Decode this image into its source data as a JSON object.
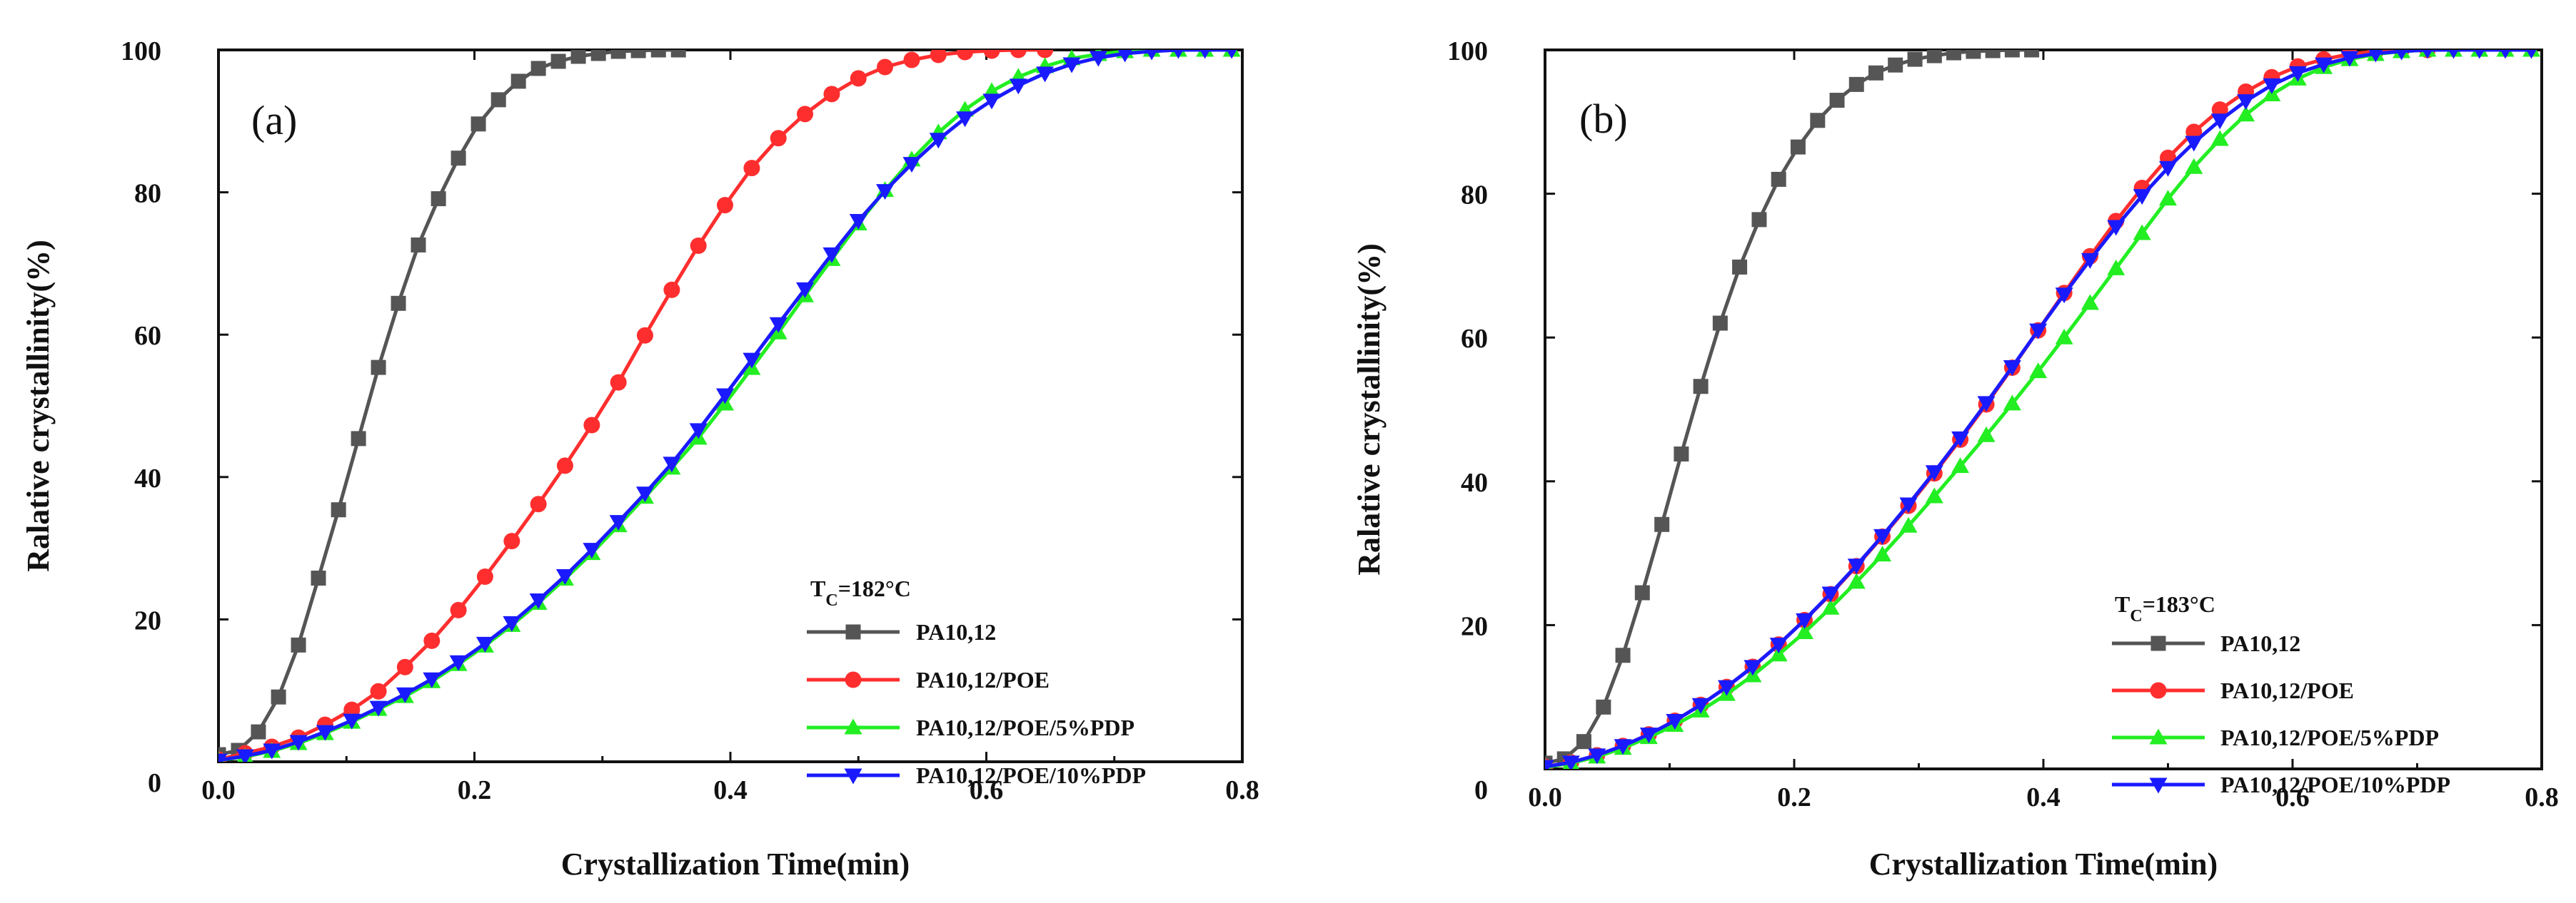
{
  "colors": {
    "PA10,12": "#555555",
    "PA10,12/POE": "#ff2e2e",
    "PA10,12/POE/5%PDP": "#22ee22",
    "PA10,12/POE/10%PDP": "#1a1aff",
    "axis": "#111111"
  },
  "chart_data": [
    {
      "type": "line",
      "panel_label": "(a)",
      "legend_title_main": "T",
      "legend_title_sub": "C",
      "legend_title_rest": "=182°C",
      "legend_position": "bottom-right",
      "xlabel": "Crystallization Time(min)",
      "ylabel": "Ralative crystallinity(%)",
      "xlim": [
        0,
        0.8
      ],
      "ylim": [
        0,
        100
      ],
      "xticks": [
        0.0,
        0.2,
        0.4,
        0.6,
        0.8
      ],
      "xtick_labels": [
        "0.0",
        "0.2",
        "0.4",
        "0.6",
        "0.8"
      ],
      "yticks": [
        0,
        20,
        40,
        60,
        80,
        100
      ],
      "ytick_labels": [
        "0",
        "20",
        "40",
        "60",
        "80",
        "100"
      ],
      "grid": false,
      "series": [
        {
          "name": "PA10,12",
          "marker": "square",
          "color_key": "PA10,12",
          "x": [
            0.0,
            0.0156,
            0.0312,
            0.0469,
            0.0625,
            0.0781,
            0.0938,
            0.1094,
            0.125,
            0.1406,
            0.1562,
            0.1719,
            0.1875,
            0.2031,
            0.2188,
            0.2344,
            0.25,
            0.2656,
            0.2812,
            0.2969,
            0.3125,
            0.3281,
            0.3438,
            0.3594
          ],
          "y": [
            1.0,
            1.6,
            4.2,
            9.1,
            16.4,
            25.8,
            35.4,
            45.4,
            55.4,
            64.4,
            72.6,
            79.1,
            84.8,
            89.6,
            93.0,
            95.6,
            97.4,
            98.4,
            99.1,
            99.5,
            99.8,
            99.9,
            100.0,
            100.0
          ]
        },
        {
          "name": "PA10,12/POE",
          "marker": "circle",
          "color_key": "PA10,12/POE",
          "x": [
            0.0,
            0.0208,
            0.0417,
            0.0625,
            0.0833,
            0.1042,
            0.125,
            0.1458,
            0.1667,
            0.1875,
            0.2083,
            0.2292,
            0.25,
            0.2708,
            0.2917,
            0.3125,
            0.3333,
            0.3542,
            0.375,
            0.3958,
            0.4167,
            0.4375,
            0.4583,
            0.4792,
            0.5,
            0.5208,
            0.5417,
            0.5625,
            0.5833,
            0.6042,
            0.625,
            0.6458
          ],
          "y": [
            0.3,
            1.2,
            2.1,
            3.4,
            5.2,
            7.3,
            9.9,
            13.3,
            17.0,
            21.3,
            26.0,
            31.0,
            36.2,
            41.6,
            47.3,
            53.3,
            59.9,
            66.3,
            72.5,
            78.2,
            83.4,
            87.6,
            91.0,
            93.8,
            96.0,
            97.6,
            98.6,
            99.3,
            99.7,
            99.9,
            100.0,
            100.0
          ]
        },
        {
          "name": "PA10,12/POE/5%PDP",
          "marker": "triangle-up",
          "color_key": "PA10,12/POE/5%PDP",
          "x": [
            0.0,
            0.0208,
            0.0417,
            0.0625,
            0.0833,
            0.1042,
            0.125,
            0.1458,
            0.1667,
            0.1875,
            0.2083,
            0.2292,
            0.25,
            0.2708,
            0.2917,
            0.3125,
            0.3333,
            0.3542,
            0.375,
            0.3958,
            0.4167,
            0.4375,
            0.4583,
            0.4792,
            0.5,
            0.5208,
            0.5417,
            0.5625,
            0.5833,
            0.6042,
            0.625,
            0.6458,
            0.6667,
            0.6875,
            0.7083,
            0.7292,
            0.75,
            0.7708,
            0.7917
          ],
          "y": [
            0.2,
            0.7,
            1.5,
            2.6,
            4.0,
            5.6,
            7.4,
            9.2,
            11.3,
            13.7,
            16.3,
            19.2,
            22.3,
            25.7,
            29.3,
            33.2,
            37.2,
            41.3,
            45.5,
            50.3,
            55.3,
            60.3,
            65.5,
            70.6,
            75.6,
            80.3,
            84.6,
            88.4,
            91.6,
            94.2,
            96.2,
            97.7,
            98.8,
            99.4,
            99.8,
            100.0,
            100.0,
            100.0,
            100.0
          ]
        },
        {
          "name": "PA10,12/POE/10%PDP",
          "marker": "triangle-down",
          "color_key": "PA10,12/POE/10%PDP",
          "x": [
            0.0,
            0.0208,
            0.0417,
            0.0625,
            0.0833,
            0.1042,
            0.125,
            0.1458,
            0.1667,
            0.1875,
            0.2083,
            0.2292,
            0.25,
            0.2708,
            0.2917,
            0.3125,
            0.3333,
            0.3542,
            0.375,
            0.3958,
            0.4167,
            0.4375,
            0.4583,
            0.4792,
            0.5,
            0.5208,
            0.5417,
            0.5625,
            0.5833,
            0.6042,
            0.625,
            0.6458,
            0.6667,
            0.6875,
            0.7083,
            0.7292,
            0.75,
            0.7708,
            0.7917
          ],
          "y": [
            0.2,
            0.8,
            1.6,
            2.8,
            4.2,
            5.8,
            7.6,
            9.5,
            11.6,
            14.0,
            16.6,
            19.5,
            22.7,
            26.1,
            29.8,
            33.7,
            37.7,
            41.9,
            46.6,
            51.5,
            56.5,
            61.5,
            66.4,
            71.3,
            76.0,
            80.2,
            84.0,
            87.4,
            90.4,
            92.9,
            95.0,
            96.7,
            98.0,
            98.9,
            99.5,
            99.8,
            100.0,
            100.0,
            100.0
          ]
        }
      ]
    },
    {
      "type": "line",
      "panel_label": "(b)",
      "legend_title_main": "T",
      "legend_title_sub": "C",
      "legend_title_rest": "=183°C",
      "legend_position": "bottom-right",
      "xlabel": "Crystallization Time(min)",
      "ylabel": "Ralative crystallinity(%)",
      "xlim": [
        0,
        0.8
      ],
      "ylim": [
        0,
        100
      ],
      "xticks": [
        0.0,
        0.2,
        0.4,
        0.6,
        0.8
      ],
      "xtick_labels": [
        "0.0",
        "0.2",
        "0.4",
        "0.6",
        "0.8"
      ],
      "yticks": [
        0,
        20,
        40,
        60,
        80,
        100
      ],
      "ytick_labels": [
        "0",
        "20",
        "40",
        "60",
        "80",
        "100"
      ],
      "grid": false,
      "series": [
        {
          "name": "PA10,12",
          "marker": "square",
          "color_key": "PA10,12",
          "x": [
            0.0,
            0.0156,
            0.0312,
            0.0469,
            0.0625,
            0.0781,
            0.0938,
            0.1094,
            0.125,
            0.1406,
            0.1562,
            0.1719,
            0.1875,
            0.2031,
            0.2188,
            0.2344,
            0.25,
            0.2656,
            0.2812,
            0.2969,
            0.3125,
            0.3281,
            0.3438,
            0.3594,
            0.375,
            0.3906
          ],
          "y": [
            0.8,
            1.4,
            3.8,
            8.6,
            15.8,
            24.5,
            34.0,
            43.8,
            53.2,
            62.0,
            69.8,
            76.4,
            82.0,
            86.5,
            90.2,
            93.0,
            95.2,
            96.8,
            97.9,
            98.7,
            99.2,
            99.6,
            99.8,
            99.9,
            100.0,
            100.0
          ]
        },
        {
          "name": "PA10,12/POE",
          "marker": "circle",
          "color_key": "PA10,12/POE",
          "x": [
            0.0,
            0.0208,
            0.0417,
            0.0625,
            0.0833,
            0.1042,
            0.125,
            0.1458,
            0.1667,
            0.1875,
            0.2083,
            0.2292,
            0.25,
            0.2708,
            0.2917,
            0.3125,
            0.3333,
            0.3542,
            0.375,
            0.3958,
            0.4167,
            0.4375,
            0.4583,
            0.4792,
            0.5,
            0.5208,
            0.5417,
            0.5625,
            0.5833,
            0.6042,
            0.625,
            0.6458,
            0.6667,
            0.6875,
            0.7083
          ],
          "y": [
            0.3,
            0.9,
            1.9,
            3.2,
            4.8,
            6.7,
            8.9,
            11.4,
            14.2,
            17.3,
            20.7,
            24.3,
            28.2,
            32.3,
            36.6,
            41.1,
            45.8,
            50.7,
            55.8,
            61.0,
            66.2,
            71.3,
            76.2,
            80.8,
            85.0,
            88.6,
            91.7,
            94.2,
            96.2,
            97.7,
            98.7,
            99.4,
            99.8,
            100.0,
            100.0
          ]
        },
        {
          "name": "PA10,12/POE/5%PDP",
          "marker": "triangle-up",
          "color_key": "PA10,12/POE/5%PDP",
          "x": [
            0.0,
            0.0208,
            0.0417,
            0.0625,
            0.0833,
            0.1042,
            0.125,
            0.1458,
            0.1667,
            0.1875,
            0.2083,
            0.2292,
            0.25,
            0.2708,
            0.2917,
            0.3125,
            0.3333,
            0.3542,
            0.375,
            0.3958,
            0.4167,
            0.4375,
            0.4583,
            0.4792,
            0.5,
            0.5208,
            0.5417,
            0.5625,
            0.5833,
            0.6042,
            0.625,
            0.6458,
            0.6667,
            0.6875,
            0.7083,
            0.7292,
            0.75,
            0.7708,
            0.7917
          ],
          "y": [
            0.2,
            0.8,
            1.7,
            2.9,
            4.4,
            6.1,
            8.1,
            10.4,
            13.0,
            15.9,
            19.0,
            22.4,
            26.0,
            29.8,
            33.8,
            37.9,
            42.1,
            46.4,
            50.8,
            55.3,
            60.0,
            64.8,
            69.6,
            74.5,
            79.3,
            83.7,
            87.6,
            91.0,
            93.8,
            96.0,
            97.6,
            98.7,
            99.4,
            99.8,
            100.0,
            100.0,
            100.0,
            100.0,
            100.0
          ]
        },
        {
          "name": "PA10,12/POE/10%PDP",
          "marker": "triangle-down",
          "color_key": "PA10,12/POE/10%PDP",
          "x": [
            0.0,
            0.0208,
            0.0417,
            0.0625,
            0.0833,
            0.1042,
            0.125,
            0.1458,
            0.1667,
            0.1875,
            0.2083,
            0.2292,
            0.25,
            0.2708,
            0.2917,
            0.3125,
            0.3333,
            0.3542,
            0.375,
            0.3958,
            0.4167,
            0.4375,
            0.4583,
            0.4792,
            0.5,
            0.5208,
            0.5417,
            0.5625,
            0.5833,
            0.6042,
            0.625,
            0.6458,
            0.6667,
            0.6875,
            0.7083,
            0.7292,
            0.75,
            0.7708,
            0.7917
          ],
          "y": [
            0.3,
            0.9,
            1.9,
            3.2,
            4.8,
            6.7,
            8.9,
            11.4,
            14.2,
            17.3,
            20.7,
            24.4,
            28.3,
            32.4,
            36.8,
            41.3,
            46.0,
            50.9,
            55.9,
            61.0,
            66.0,
            70.8,
            75.4,
            79.7,
            83.6,
            87.1,
            90.2,
            92.9,
            95.1,
            96.8,
            98.0,
            98.9,
            99.5,
            99.8,
            100.0,
            100.0,
            100.0,
            100.0,
            100.0
          ]
        }
      ]
    }
  ]
}
